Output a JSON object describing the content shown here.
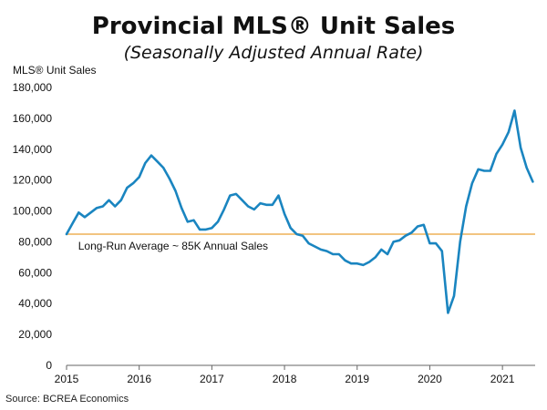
{
  "chart_data": {
    "type": "line",
    "title": "Provincial MLS® Unit Sales",
    "subtitle": "(Seasonally Adjusted Annual Rate)",
    "ylabel": "MLS® Unit Sales",
    "source": "Source: BCREA Economics",
    "ylim": [
      0,
      180000
    ],
    "xlim": [
      2015,
      2021.45
    ],
    "y_ticks": [
      0,
      20000,
      40000,
      60000,
      80000,
      100000,
      120000,
      140000,
      160000,
      180000
    ],
    "y_tick_labels": [
      "0",
      "20,000",
      "40,000",
      "60,000",
      "80,000",
      "100,000",
      "120,000",
      "140,000",
      "160,000",
      "180,000"
    ],
    "x_tick_labels": [
      "2015",
      "2016",
      "2017",
      "2018",
      "2019",
      "2020",
      "2021"
    ],
    "grid": false,
    "reference_line": {
      "value": 85000,
      "label": "Long-Run Average ~ 85K Annual Sales",
      "color": "#f2c480"
    },
    "series_color": "#1a85c0",
    "series": [
      {
        "x": [
          2015.0,
          2015.083,
          2015.167,
          2015.25,
          2015.333,
          2015.417,
          2015.5,
          2015.583,
          2015.667,
          2015.75,
          2015.833,
          2015.917,
          2016.0,
          2016.083,
          2016.167,
          2016.25,
          2016.333,
          2016.417,
          2016.5,
          2016.583,
          2016.667,
          2016.75,
          2016.833,
          2016.917,
          2017.0,
          2017.083,
          2017.167,
          2017.25,
          2017.333,
          2017.417,
          2017.5,
          2017.583,
          2017.667,
          2017.75,
          2017.833,
          2017.917,
          2018.0,
          2018.083,
          2018.167,
          2018.25,
          2018.333,
          2018.417,
          2018.5,
          2018.583,
          2018.667,
          2018.75,
          2018.833,
          2018.917,
          2019.0,
          2019.083,
          2019.167,
          2019.25,
          2019.333,
          2019.417,
          2019.5,
          2019.583,
          2019.667,
          2019.75,
          2019.833,
          2019.917,
          2020.0,
          2020.083,
          2020.167,
          2020.25,
          2020.333,
          2020.417,
          2020.5,
          2020.583,
          2020.667,
          2020.75,
          2020.833,
          2020.917,
          2021.0,
          2021.083,
          2021.167,
          2021.25,
          2021.333,
          2021.417
        ],
        "values": [
          85000,
          92000,
          99000,
          96000,
          99000,
          102000,
          103000,
          107000,
          103000,
          107000,
          115000,
          118000,
          122000,
          131000,
          136000,
          132000,
          128000,
          121000,
          113000,
          102000,
          93000,
          94000,
          88000,
          88000,
          89000,
          93000,
          101000,
          110000,
          111000,
          107000,
          103000,
          101000,
          105000,
          104000,
          104000,
          110000,
          98000,
          89000,
          85000,
          84000,
          79000,
          77000,
          75000,
          74000,
          72000,
          72000,
          68000,
          66000,
          66000,
          65000,
          67000,
          70000,
          75000,
          72000,
          80000,
          81000,
          84000,
          86000,
          90000,
          91000,
          79000,
          79000,
          74000,
          34000,
          45000,
          80000,
          103000,
          118000,
          127000,
          126000,
          126000,
          137000,
          143000,
          151000,
          165000,
          141000,
          128000,
          119000
        ]
      }
    ]
  }
}
